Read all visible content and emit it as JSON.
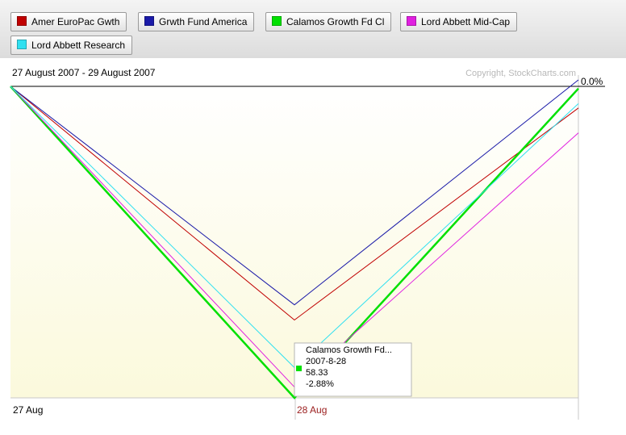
{
  "legend": [
    {
      "label": "Amer EuroPac Gwth",
      "color": "#c00000"
    },
    {
      "label": "Grwth Fund America",
      "color": "#1a1aa8"
    },
    {
      "label": "Calamos Growth Fd Cl",
      "color": "#00e000"
    },
    {
      "label": "Lord Abbett Mid-Cap",
      "color": "#e020e0"
    },
    {
      "label": "Lord Abbett Research",
      "color": "#30e0f0"
    }
  ],
  "header": {
    "date_range": "27 August 2007 - 29 August 2007",
    "copyright": "Copyright, StockCharts.com",
    "zero_label": "0.0%"
  },
  "tooltip": {
    "name": "Calamos Growth Fd...",
    "date": "2007-8-28",
    "price": "58.33",
    "change": "-2.88%",
    "color": "#00e000"
  },
  "chart_data": {
    "type": "line",
    "x": [
      "27 Aug",
      "28 Aug",
      "29 Aug"
    ],
    "x_tick_labels": [
      "27 Aug",
      "28 Aug"
    ],
    "highlighted_x_tick": "28 Aug",
    "ylim": [
      -2.88,
      0.0
    ],
    "y_tick_labels": [
      "0.0%"
    ],
    "series": [
      {
        "name": "Amer EuroPac Gwth",
        "color": "#c00000",
        "values": [
          0.0,
          -2.16,
          -0.2
        ]
      },
      {
        "name": "Grwth Fund America",
        "color": "#1a1aa8",
        "values": [
          0.0,
          -2.02,
          0.06
        ]
      },
      {
        "name": "Calamos Growth Fd Cl",
        "color": "#00e000",
        "values": [
          0.0,
          -2.88,
          -0.02
        ]
      },
      {
        "name": "Lord Abbett Mid-Cap",
        "color": "#e020e0",
        "values": [
          0.0,
          -2.78,
          -0.43
        ]
      },
      {
        "name": "Lord Abbett Research",
        "color": "#30e0f0",
        "values": [
          0.0,
          -2.6,
          -0.16
        ]
      }
    ]
  }
}
